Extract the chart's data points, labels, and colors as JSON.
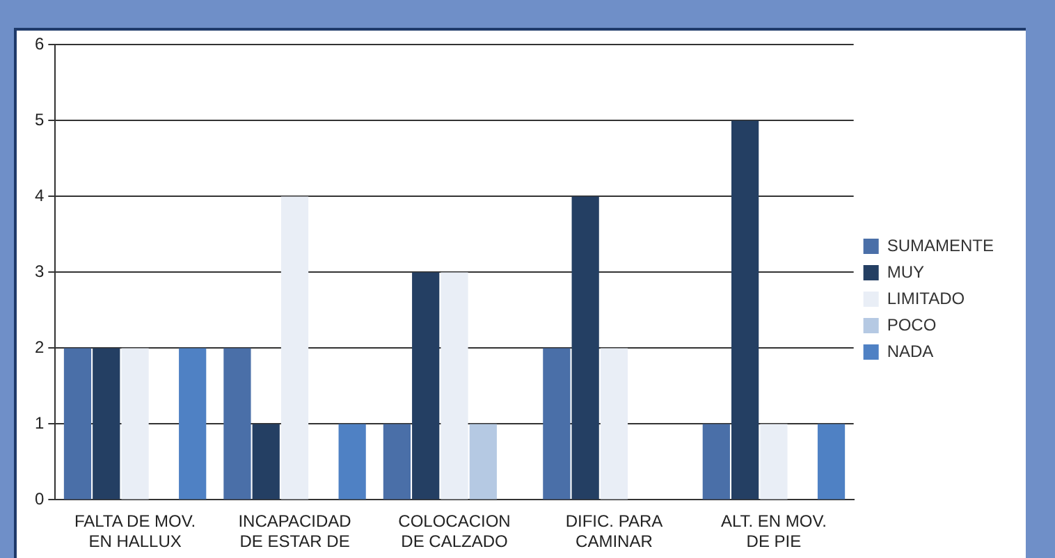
{
  "chart_data": {
    "type": "bar",
    "categories": [
      "FALTA DE MOV.\nEN HALLUX",
      "INCAPACIDAD\nDE ESTAR DE",
      "COLOCACION\nDE CALZADO",
      "DIFIC. PARA\nCAMINAR",
      "ALT. EN MOV.\nDE PIE"
    ],
    "series": [
      {
        "name": "SUMAMENTE",
        "color": "#4a6fa8",
        "values": [
          2,
          2,
          1,
          2,
          1
        ]
      },
      {
        "name": "MUY",
        "color": "#243f63",
        "values": [
          2,
          1,
          3,
          4,
          5
        ]
      },
      {
        "name": "LIMITADO",
        "color": "#e9eef6",
        "values": [
          2,
          4,
          3,
          2,
          1
        ]
      },
      {
        "name": "POCO",
        "color": "#b5c9e3",
        "values": [
          0,
          0,
          1,
          0,
          0
        ]
      },
      {
        "name": "NADA",
        "color": "#4f81c4",
        "values": [
          2,
          1,
          0,
          0,
          1
        ]
      }
    ],
    "ylim": [
      0,
      6
    ],
    "yticks": [
      0,
      1,
      2,
      3,
      4,
      5,
      6
    ],
    "grid": "y",
    "legend": "right"
  }
}
